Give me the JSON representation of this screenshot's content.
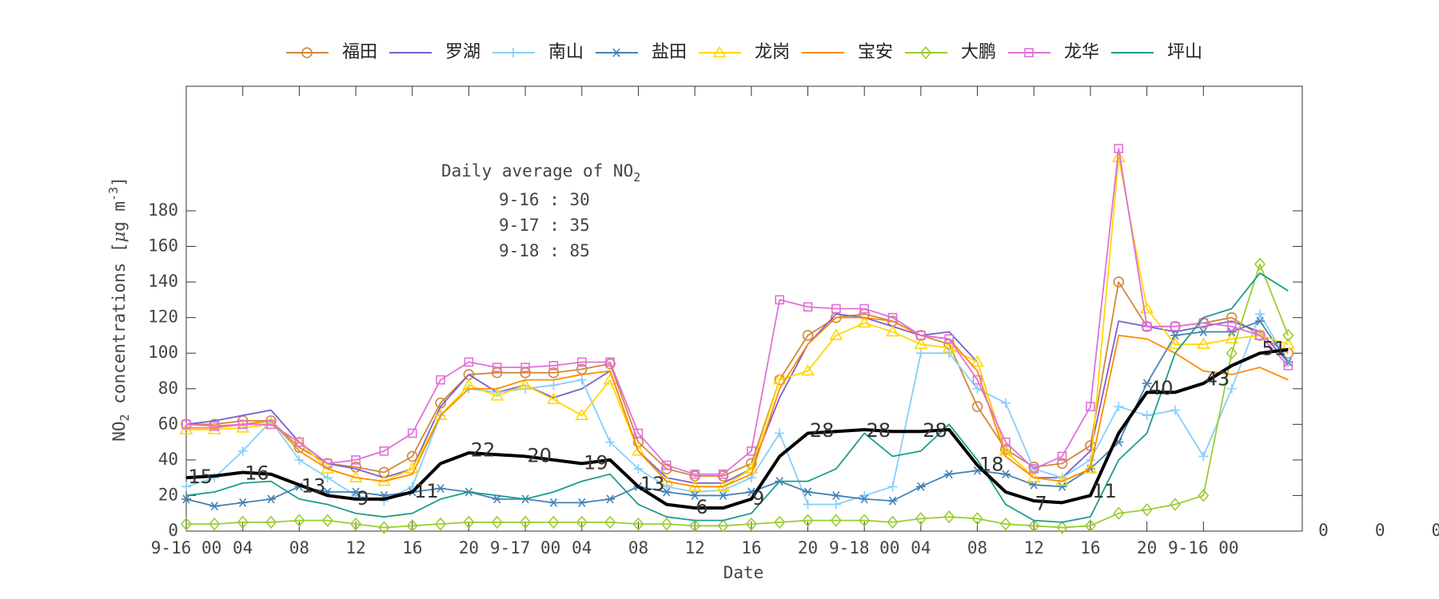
{
  "chart_data": {
    "type": "line",
    "legend_position": "top",
    "x_label": "Date",
    "y_label": [
      "NO",
      "2",
      " concentrations [",
      "μ",
      "g m",
      "-3",
      "]"
    ],
    "textbox": {
      "title": [
        "Daily average of NO",
        "2"
      ],
      "lines": [
        "9-16 : 30",
        "9-17 : 35",
        "9-18 : 85"
      ]
    },
    "xlim": [
      0,
      79
    ],
    "ylim": [
      0,
      250
    ],
    "xticks": [
      {
        "value": 0,
        "label": "9-16 00"
      },
      {
        "value": 4,
        "label": "04"
      },
      {
        "value": 8,
        "label": "08"
      },
      12,
      16,
      20,
      {
        "value": 24,
        "label": "9-17 00"
      },
      {
        "value": 28,
        "label": "04"
      },
      {
        "value": 32,
        "label": "08"
      },
      {
        "value": 36,
        "label": "12"
      },
      {
        "value": 40,
        "label": "16"
      },
      {
        "value": 44,
        "label": "20"
      },
      {
        "value": 48,
        "label": "9-18 00"
      },
      {
        "value": 52,
        "label": "04"
      },
      {
        "value": 56,
        "label": "08"
      },
      {
        "value": 60,
        "label": "12"
      },
      {
        "value": 64,
        "label": "16"
      },
      {
        "value": 68,
        "label": "20"
      },
      {
        "value": 72,
        "label": "9-16 00"
      }
    ],
    "yticks": [
      0,
      20,
      40,
      60,
      80,
      100,
      120,
      140,
      160,
      180
    ],
    "x": [
      0,
      2,
      4,
      6,
      8,
      10,
      12,
      14,
      16,
      18,
      20,
      22,
      24,
      26,
      28,
      30,
      32,
      34,
      36,
      38,
      40,
      42,
      44,
      46,
      48,
      50,
      52,
      54,
      56,
      58,
      60,
      62,
      64,
      66,
      68,
      70,
      72,
      74,
      76,
      78
    ],
    "series": [
      {
        "name": "福田",
        "color": "#d0873a",
        "marker": "o",
        "values": [
          60,
          60,
          62,
          62,
          47,
          38,
          36,
          33,
          42,
          72,
          88,
          89,
          89,
          89,
          91,
          94,
          50,
          35,
          31,
          31,
          38,
          85,
          110,
          120,
          122,
          118,
          110,
          105,
          70,
          46,
          36,
          38,
          48,
          140,
          115,
          115,
          117,
          120,
          110,
          100
        ]
      },
      {
        "name": "罗湖",
        "color": "#7b5fd0",
        "marker": "none",
        "values": [
          60,
          62,
          65,
          68,
          50,
          38,
          35,
          30,
          35,
          70,
          88,
          78,
          82,
          75,
          80,
          90,
          45,
          30,
          27,
          27,
          35,
          75,
          105,
          122,
          120,
          115,
          110,
          112,
          95,
          45,
          30,
          30,
          45,
          118,
          115,
          112,
          115,
          118,
          112,
          95
        ]
      },
      {
        "name": "南山",
        "color": "#87cefa",
        "marker": "+",
        "values": [
          25,
          30,
          45,
          62,
          40,
          30,
          20,
          17,
          25,
          65,
          80,
          78,
          80,
          82,
          85,
          50,
          35,
          25,
          22,
          23,
          30,
          55,
          15,
          15,
          20,
          25,
          100,
          100,
          80,
          72,
          35,
          30,
          40,
          70,
          65,
          68,
          42,
          80,
          122,
          95
        ]
      },
      {
        "name": "盐田",
        "color": "#4682b4",
        "marker": "*",
        "values": [
          18,
          14,
          16,
          18,
          25,
          22,
          22,
          20,
          22,
          24,
          22,
          18,
          18,
          16,
          16,
          18,
          25,
          22,
          20,
          20,
          22,
          28,
          22,
          20,
          18,
          17,
          25,
          32,
          34,
          32,
          26,
          25,
          35,
          50,
          83,
          110,
          112,
          112,
          118,
          95
        ]
      },
      {
        "name": "龙岗",
        "color": "#ffd700",
        "marker": "^",
        "values": [
          57,
          57,
          58,
          60,
          50,
          35,
          30,
          28,
          35,
          65,
          82,
          76,
          82,
          74,
          65,
          85,
          45,
          28,
          25,
          25,
          35,
          85,
          90,
          110,
          117,
          112,
          105,
          103,
          95,
          45,
          30,
          28,
          35,
          210,
          125,
          105,
          105,
          108,
          110,
          105
        ]
      },
      {
        "name": "宝安",
        "color": "#ff8c00",
        "marker": "none",
        "values": [
          58,
          58,
          60,
          62,
          45,
          35,
          30,
          28,
          32,
          65,
          80,
          80,
          85,
          85,
          88,
          90,
          45,
          28,
          25,
          25,
          32,
          80,
          105,
          120,
          120,
          118,
          110,
          108,
          90,
          42,
          30,
          28,
          35,
          110,
          108,
          100,
          90,
          88,
          92,
          85
        ]
      },
      {
        "name": "大鹏",
        "color": "#9acd32",
        "marker": "d",
        "values": [
          4,
          4,
          5,
          5,
          6,
          6,
          4,
          2,
          3,
          4,
          5,
          5,
          5,
          5,
          5,
          5,
          4,
          4,
          3,
          3,
          4,
          5,
          6,
          6,
          6,
          5,
          7,
          8,
          7,
          4,
          3,
          2,
          3,
          10,
          12,
          15,
          20,
          100,
          150,
          110
        ]
      },
      {
        "name": "龙华",
        "color": "#e070d8",
        "marker": "s",
        "values": [
          60,
          59,
          60,
          60,
          50,
          38,
          40,
          45,
          55,
          85,
          95,
          92,
          92,
          93,
          95,
          95,
          55,
          37,
          32,
          32,
          45,
          130,
          126,
          125,
          125,
          120,
          110,
          108,
          85,
          50,
          35,
          42,
          70,
          215,
          115,
          115,
          117,
          115,
          110,
          93
        ]
      },
      {
        "name": "坪山",
        "color": "#1e9c8c",
        "marker": "none",
        "values": [
          20,
          22,
          27,
          28,
          18,
          15,
          10,
          8,
          10,
          18,
          22,
          20,
          18,
          22,
          28,
          32,
          15,
          8,
          6,
          6,
          10,
          28,
          28,
          35,
          55,
          42,
          45,
          60,
          40,
          15,
          6,
          5,
          8,
          40,
          55,
          100,
          120,
          125,
          145,
          135
        ]
      },
      {
        "color": "#000000",
        "marker": "none",
        "values": [
          30,
          31,
          33,
          32,
          26,
          20,
          18,
          18,
          22,
          38,
          44,
          43,
          42,
          40,
          38,
          40,
          25,
          15,
          13,
          13,
          18,
          42,
          55,
          56,
          57,
          56,
          56,
          57,
          37,
          22,
          17,
          16,
          20,
          55,
          78,
          78,
          83,
          93,
          100,
          102
        ]
      }
    ],
    "annotations": [
      {
        "text": "15",
        "x": 1,
        "y": 30
      },
      {
        "text": "16",
        "x": 5,
        "y": 32
      },
      {
        "text": "13",
        "x": 9,
        "y": 25
      },
      {
        "text": "9",
        "x": 12.5,
        "y": 18
      },
      {
        "text": "11",
        "x": 17,
        "y": 22
      },
      {
        "text": "22",
        "x": 21,
        "y": 45
      },
      {
        "text": "20",
        "x": 25,
        "y": 42
      },
      {
        "text": "19",
        "x": 29,
        "y": 38
      },
      {
        "text": "13",
        "x": 33,
        "y": 26
      },
      {
        "text": "6",
        "x": 36.5,
        "y": 13
      },
      {
        "text": "9",
        "x": 40.5,
        "y": 18
      },
      {
        "text": "28",
        "x": 45,
        "y": 56
      },
      {
        "text": "28",
        "x": 49,
        "y": 56
      },
      {
        "text": "28",
        "x": 53,
        "y": 56
      },
      {
        "text": "18",
        "x": 57,
        "y": 37
      },
      {
        "text": "7",
        "x": 60.5,
        "y": 15
      },
      {
        "text": "11",
        "x": 65,
        "y": 22
      },
      {
        "text": "40",
        "x": 69,
        "y": 80
      },
      {
        "text": "43",
        "x": 73,
        "y": 85
      },
      {
        "text": "51",
        "x": 77,
        "y": 102
      }
    ],
    "extra_labels": [
      {
        "text": "0",
        "x": 80.5,
        "y": 0
      },
      {
        "text": "0",
        "x": 84.5,
        "y": 0
      },
      {
        "text": "0",
        "x": 88.5,
        "y": 0
      }
    ]
  }
}
